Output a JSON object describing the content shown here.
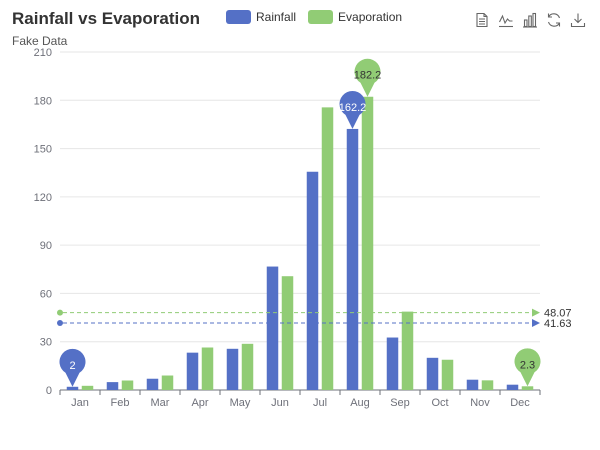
{
  "header": {
    "title": "Rainfall vs Evaporation",
    "subtitle": "Fake Data"
  },
  "toolbox": {
    "icons": [
      "data-view-icon",
      "line-chart-icon",
      "bar-chart-icon",
      "restore-icon",
      "save-image-icon"
    ]
  },
  "colors": {
    "rainfall": "#5470c6",
    "evaporation": "#91cc75",
    "grid": "#e6e6e6",
    "axis": "#6e7079"
  },
  "chart_data": {
    "type": "bar",
    "title": "Rainfall vs Evaporation",
    "subtitle": "Fake Data",
    "categories": [
      "Jan",
      "Feb",
      "Mar",
      "Apr",
      "May",
      "Jun",
      "Jul",
      "Aug",
      "Sep",
      "Oct",
      "Nov",
      "Dec"
    ],
    "series": [
      {
        "name": "Rainfall",
        "values": [
          2.0,
          4.9,
          7.0,
          23.2,
          25.6,
          76.7,
          135.6,
          162.2,
          32.6,
          20.0,
          6.4,
          3.3
        ],
        "markpoints": [
          {
            "type": "max",
            "category": "Aug",
            "value": 162.2,
            "label": "162.2"
          },
          {
            "type": "min",
            "category": "Jan",
            "value": 2.0,
            "label": "2"
          }
        ],
        "markline": {
          "type": "average",
          "value": 41.63,
          "label": "41.63"
        }
      },
      {
        "name": "Evaporation",
        "values": [
          2.6,
          5.9,
          9.0,
          26.4,
          28.7,
          70.7,
          175.6,
          182.2,
          48.7,
          18.8,
          6.0,
          2.3
        ],
        "markpoints": [
          {
            "type": "max",
            "category": "Aug",
            "value": 182.2,
            "label": "182.2"
          },
          {
            "type": "min",
            "category": "Dec",
            "value": 2.3,
            "label": "2.3"
          }
        ],
        "markline": {
          "type": "average",
          "value": 48.07,
          "label": "48.07"
        }
      }
    ],
    "ylim": [
      0,
      210
    ],
    "yticks": [
      0,
      30,
      60,
      90,
      120,
      150,
      180,
      210
    ],
    "grid": true,
    "legend_position": "top-center"
  }
}
